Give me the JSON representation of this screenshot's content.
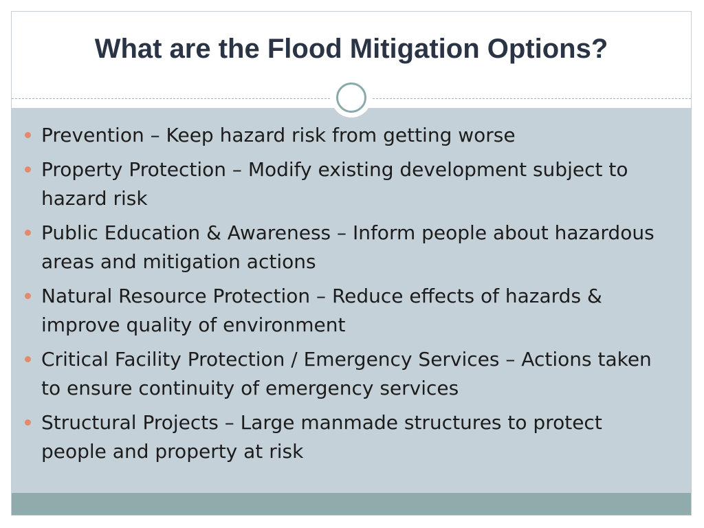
{
  "slide": {
    "title": "What are the Flood Mitigation Options?",
    "bullets": [
      "Prevention – Keep hazard risk from getting worse",
      "Property Protection – Modify existing development subject to hazard risk",
      "Public Education & Awareness – Inform people about hazardous areas and mitigation actions",
      "Natural Resource Protection – Reduce effects of hazards & improve quality of environment",
      "Critical Facility Protection / Emergency Services – Actions taken to ensure continuity of emergency services",
      "Structural Projects – Large manmade structures to protect people and property at risk"
    ]
  },
  "colors": {
    "title_text": "#2b3445",
    "content_background": "#c5d1d8",
    "bullet_marker": "#e28a6b",
    "footer_bar": "#8fabab",
    "ornament_ring": "#8aa9a9"
  }
}
